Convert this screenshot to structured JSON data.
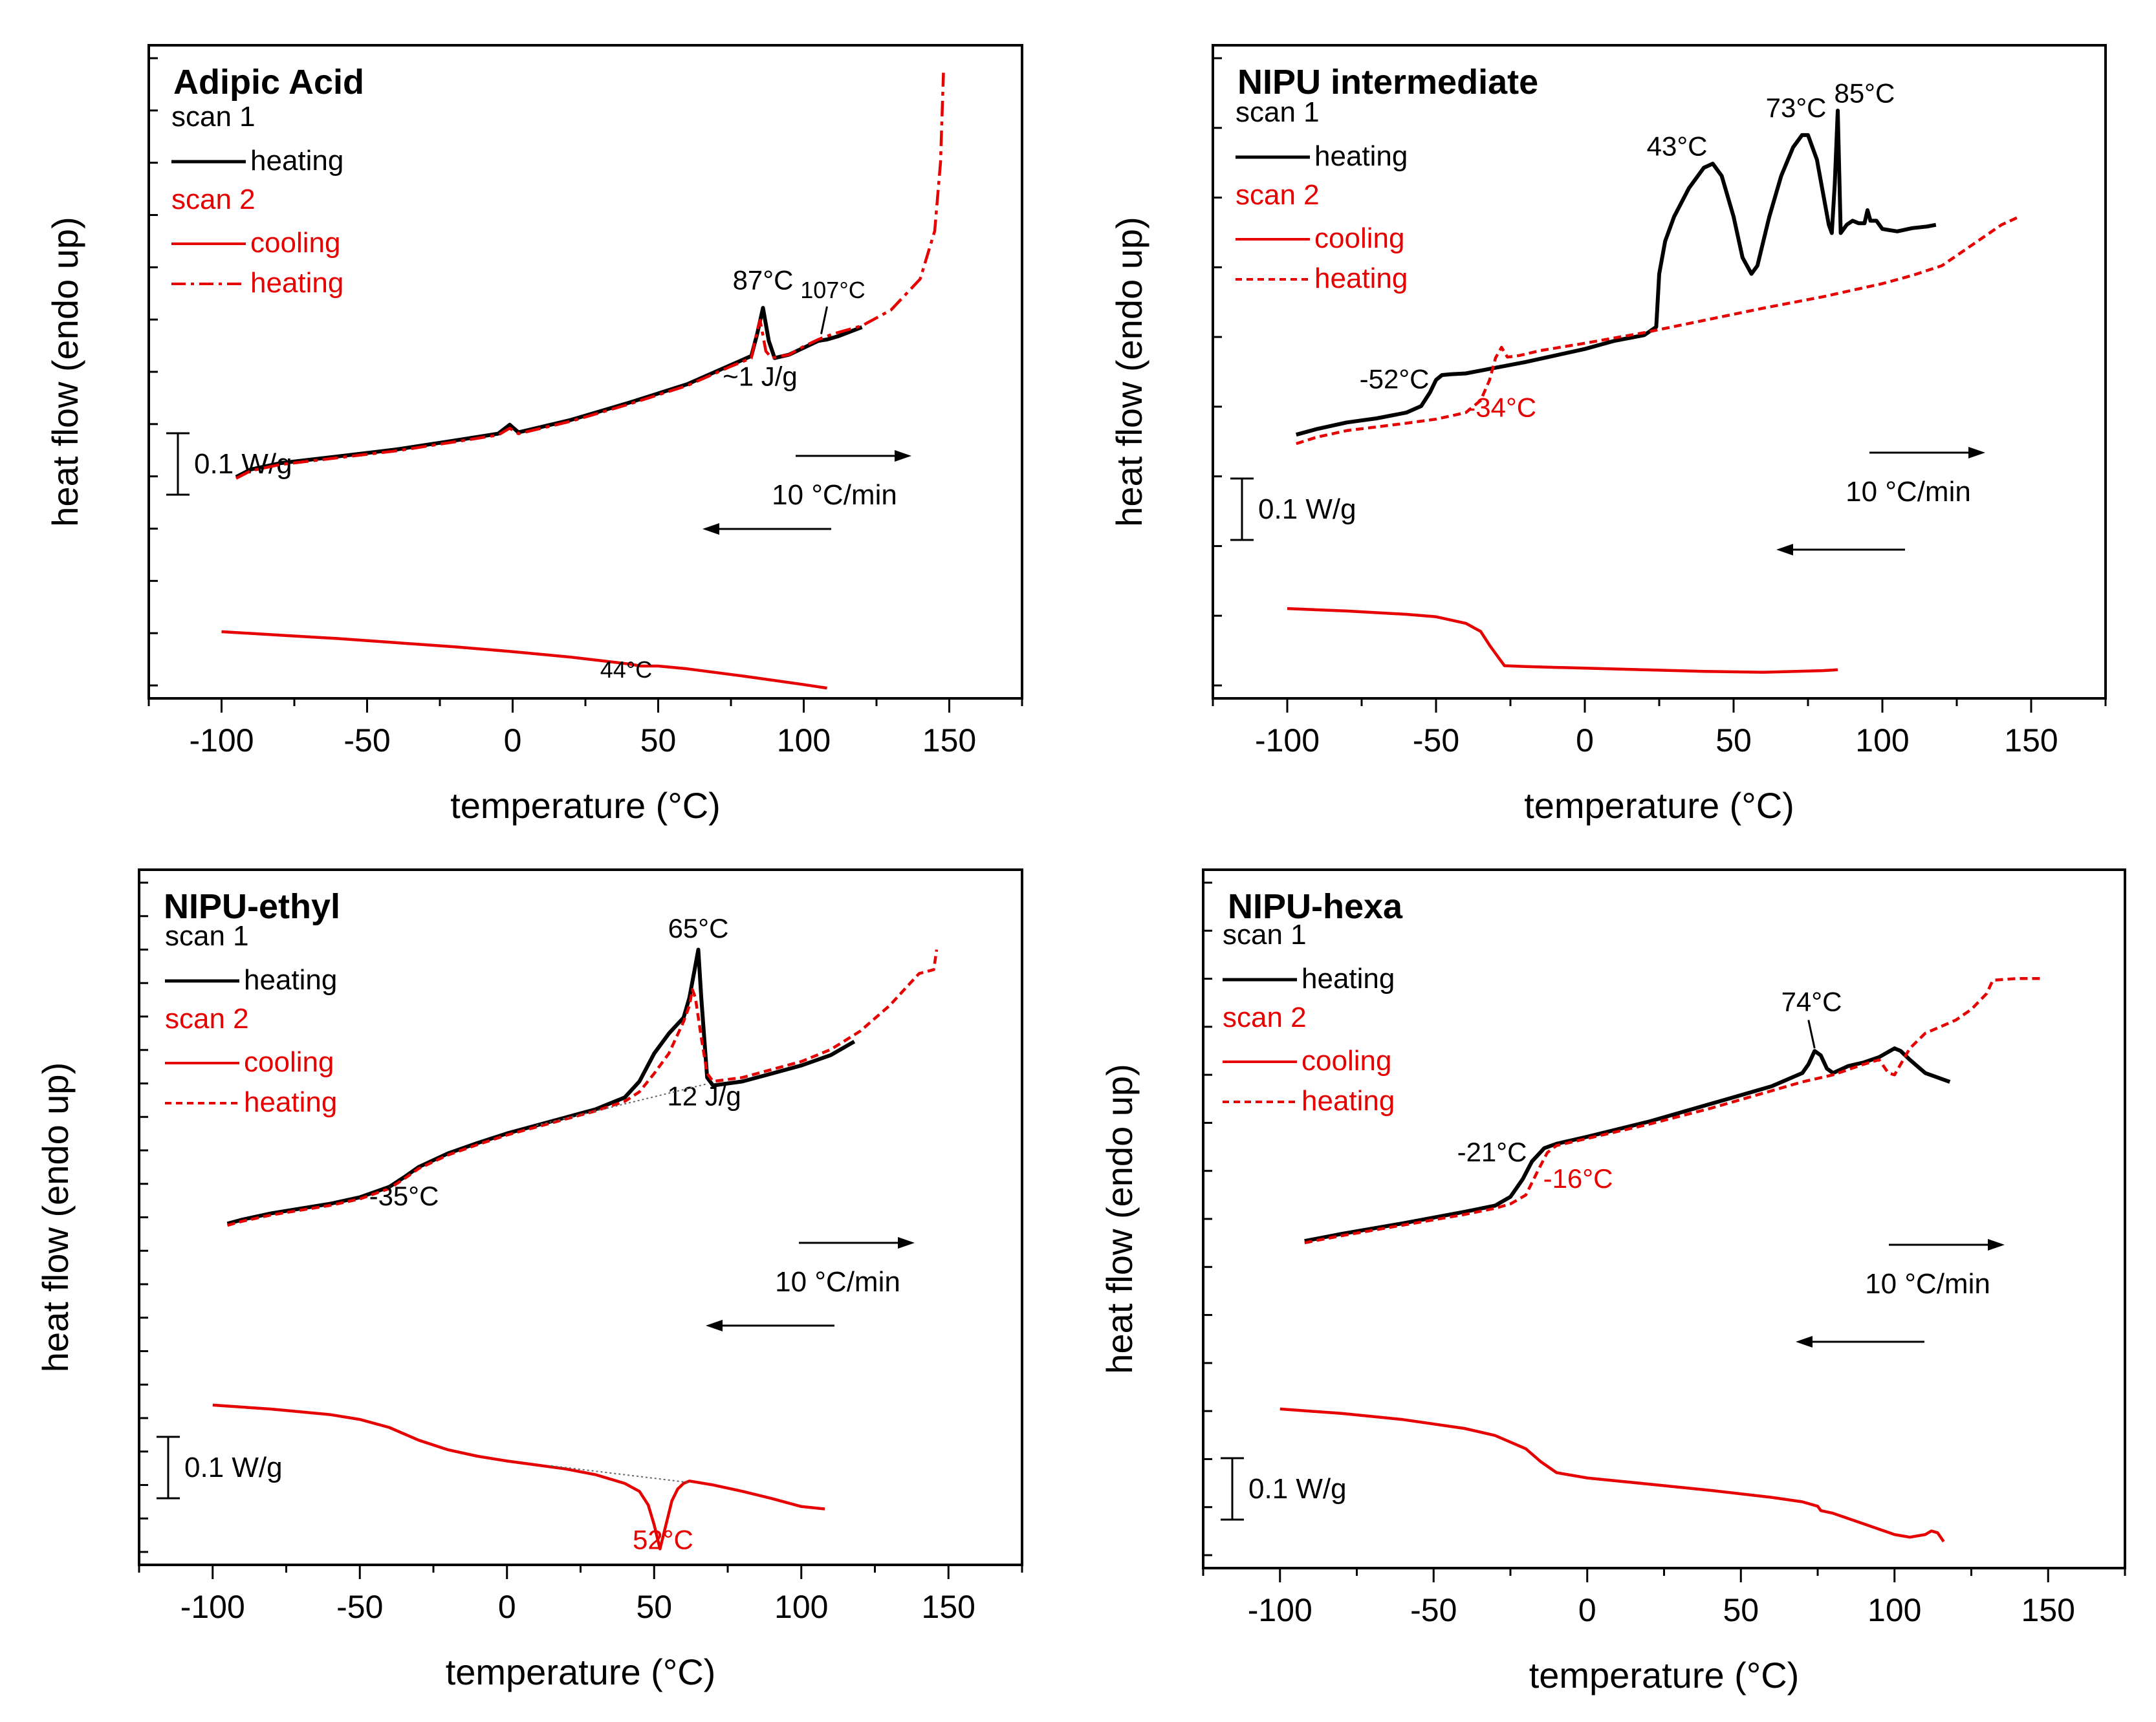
{
  "chart_data": [
    {
      "type": "line",
      "title": "Adipic Acid",
      "xlabel": "temperature (°C)",
      "ylabel": "heat flow (endo up)",
      "xlim": [
        -125,
        175
      ],
      "xticks": [
        "-100",
        "-50",
        "0",
        "50",
        "100",
        "150"
      ],
      "scale_bar": "0.1 W/g",
      "rate_label": "10 °C/min",
      "legend": {
        "scan1": "scan 1",
        "scan1_heating": "heating",
        "scan2": "scan 2",
        "scan2_cooling": "cooling",
        "scan2_heating": "heating",
        "scan2_heating_style": "dashdot"
      },
      "series": [
        {
          "name": "scan 1 heating",
          "color": "#000000",
          "style": "solid",
          "x": [
            -95,
            -90,
            -80,
            -60,
            -40,
            -20,
            -5,
            -1,
            2,
            5,
            20,
            40,
            60,
            75,
            82,
            84,
            86,
            88,
            90,
            95,
            100,
            105,
            108,
            112,
            120
          ],
          "y": [
            -0.008,
            0.003,
            0.012,
            0.022,
            0.032,
            0.045,
            0.055,
            0.068,
            0.057,
            0.06,
            0.075,
            0.1,
            0.127,
            0.155,
            0.168,
            0.2,
            0.238,
            0.19,
            0.165,
            0.17,
            0.18,
            0.19,
            0.192,
            0.197,
            0.21
          ]
        },
        {
          "name": "scan 2 heating",
          "color": "#e60000",
          "style": "dashdot",
          "x": [
            -95,
            -90,
            -80,
            -60,
            -40,
            -20,
            -5,
            -1,
            2,
            5,
            20,
            40,
            60,
            75,
            82,
            84,
            85,
            87,
            89,
            95,
            100,
            105,
            110,
            120,
            130,
            140,
            145,
            147,
            148
          ],
          "y": [
            -0.01,
            0.001,
            0.01,
            0.02,
            0.03,
            0.043,
            0.053,
            0.063,
            0.055,
            0.058,
            0.073,
            0.098,
            0.125,
            0.153,
            0.165,
            0.205,
            0.22,
            0.175,
            0.165,
            0.17,
            0.182,
            0.192,
            0.2,
            0.212,
            0.235,
            0.28,
            0.35,
            0.45,
            0.58
          ]
        },
        {
          "name": "scan 2 cooling",
          "color": "#e60000",
          "style": "solid",
          "x": [
            -100,
            -80,
            -60,
            -40,
            -20,
            0,
            20,
            40,
            44,
            50,
            60,
            80,
            100,
            108
          ],
          "y": [
            -0.233,
            -0.238,
            -0.243,
            -0.249,
            -0.255,
            -0.262,
            -0.27,
            -0.28,
            -0.283,
            -0.283,
            -0.287,
            -0.298,
            -0.31,
            -0.315
          ]
        }
      ],
      "annotations": [
        {
          "text": "87°C",
          "x": 86,
          "y": 0.265
        },
        {
          "text": "107°C",
          "x": 110,
          "y": 0.252
        },
        {
          "text": "~1 J/g",
          "x": 85,
          "y": 0.125
        },
        {
          "text": "44°C",
          "x": 39,
          "y": -0.3
        }
      ]
    },
    {
      "type": "line",
      "title": "NIPU intermediate",
      "xlabel": "temperature (°C)",
      "ylabel": "heat flow (endo up)",
      "xlim": [
        -125,
        175
      ],
      "xticks": [
        "-100",
        "-50",
        "0",
        "50",
        "100",
        "150"
      ],
      "scale_bar": "0.1 W/g",
      "rate_label": "10 °C/min",
      "legend": {
        "scan1": "scan 1",
        "scan1_heating": "heating",
        "scan2": "scan 2",
        "scan2_cooling": "cooling",
        "scan2_heating": "heating",
        "scan2_heating_style": "dashed"
      },
      "series": [
        {
          "name": "scan 1 heating",
          "color": "#000000",
          "style": "solid",
          "x": [
            -97,
            -90,
            -80,
            -70,
            -60,
            -55,
            -52,
            -50,
            -48,
            -45,
            -40,
            -30,
            -20,
            -10,
            0,
            10,
            20,
            24,
            25,
            27,
            30,
            35,
            40,
            43,
            46,
            50,
            53,
            56,
            58,
            62,
            66,
            70,
            73,
            75,
            78,
            80,
            82,
            83,
            84,
            85,
            86,
            88,
            90,
            92,
            94,
            95,
            96,
            98,
            100,
            105,
            110,
            115,
            118
          ],
          "y": [
            0.003,
            0.01,
            0.018,
            0.023,
            0.03,
            0.038,
            0.055,
            0.07,
            0.076,
            0.077,
            0.078,
            0.085,
            0.092,
            0.1,
            0.108,
            0.118,
            0.125,
            0.135,
            0.2,
            0.24,
            0.27,
            0.305,
            0.33,
            0.335,
            0.32,
            0.27,
            0.22,
            0.2,
            0.21,
            0.27,
            0.32,
            0.355,
            0.37,
            0.37,
            0.34,
            0.3,
            0.26,
            0.25,
            0.31,
            0.4,
            0.25,
            0.26,
            0.265,
            0.262,
            0.262,
            0.278,
            0.265,
            0.265,
            0.255,
            0.252,
            0.256,
            0.258,
            0.26
          ]
        },
        {
          "name": "scan 2 heating",
          "color": "#e60000",
          "style": "dashed",
          "x": [
            -97,
            -90,
            -80,
            -60,
            -50,
            -40,
            -35,
            -32,
            -30,
            -28,
            -26,
            -22,
            -15,
            0,
            20,
            40,
            60,
            80,
            100,
            110,
            120,
            130,
            140,
            146
          ],
          "y": [
            -0.008,
            0.0,
            0.008,
            0.017,
            0.022,
            0.03,
            0.045,
            0.07,
            0.097,
            0.11,
            0.098,
            0.1,
            0.106,
            0.115,
            0.128,
            0.143,
            0.158,
            0.172,
            0.188,
            0.198,
            0.21,
            0.235,
            0.26,
            0.27
          ]
        },
        {
          "name": "scan 2 cooling",
          "color": "#e60000",
          "style": "solid",
          "x": [
            -100,
            -80,
            -60,
            -50,
            -40,
            -35,
            -32,
            -29,
            -27,
            -20,
            0,
            20,
            40,
            60,
            80,
            85
          ],
          "y": [
            -0.21,
            -0.213,
            -0.217,
            -0.22,
            -0.228,
            -0.238,
            -0.255,
            -0.27,
            -0.28,
            -0.281,
            -0.283,
            -0.285,
            -0.287,
            -0.288,
            -0.286,
            -0.285
          ]
        }
      ],
      "annotations": [
        {
          "text": "43°C",
          "x": 31,
          "y": 0.345
        },
        {
          "text": "73°C",
          "x": 71,
          "y": 0.392
        },
        {
          "text": "85°C",
          "x": 94,
          "y": 0.41
        },
        {
          "text": "-52°C",
          "x": -64,
          "y": 0.06
        },
        {
          "text": "-34°C",
          "x": -28,
          "y": 0.025
        }
      ]
    },
    {
      "type": "line",
      "title": "NIPU-ethyl",
      "xlabel": "temperature (°C)",
      "ylabel": "heat flow (endo up)",
      "xlim": [
        -125,
        175
      ],
      "xticks": [
        "-100",
        "-50",
        "0",
        "50",
        "100",
        "150"
      ],
      "scale_bar": "0.1 W/g",
      "rate_label": "10 °C/min",
      "legend": {
        "scan1": "scan 1",
        "scan1_heating": "heating",
        "scan2": "scan 2",
        "scan2_cooling": "cooling",
        "scan2_heating": "heating",
        "scan2_heating_style": "dashed"
      },
      "series": [
        {
          "name": "scan 1 heating",
          "color": "#000000",
          "style": "solid",
          "x": [
            -95,
            -90,
            -80,
            -60,
            -50,
            -40,
            -35,
            -30,
            -20,
            -10,
            0,
            10,
            20,
            30,
            40,
            45,
            50,
            55,
            60,
            62,
            64,
            65,
            66,
            68,
            70,
            80,
            90,
            100,
            110,
            118
          ],
          "y": [
            -0.013,
            -0.008,
            0.0,
            0.012,
            0.02,
            0.033,
            0.045,
            0.058,
            0.075,
            0.088,
            0.1,
            0.11,
            0.12,
            0.13,
            0.145,
            0.165,
            0.2,
            0.225,
            0.245,
            0.27,
            0.31,
            0.33,
            0.27,
            0.17,
            0.16,
            0.165,
            0.175,
            0.185,
            0.198,
            0.215
          ]
        },
        {
          "name": "scan 2 heating",
          "color": "#e60000",
          "style": "dashed",
          "x": [
            -95,
            -90,
            -80,
            -60,
            -50,
            -40,
            -35,
            -30,
            -20,
            -10,
            0,
            10,
            20,
            30,
            40,
            45,
            50,
            55,
            60,
            62,
            63,
            64,
            66,
            68,
            70,
            80,
            90,
            100,
            110,
            120,
            130,
            135,
            140,
            145,
            146
          ],
          "y": [
            -0.015,
            -0.01,
            -0.002,
            0.01,
            0.018,
            0.031,
            0.043,
            0.056,
            0.073,
            0.086,
            0.098,
            0.108,
            0.118,
            0.128,
            0.14,
            0.152,
            0.175,
            0.2,
            0.24,
            0.26,
            0.28,
            0.27,
            0.22,
            0.175,
            0.165,
            0.17,
            0.18,
            0.19,
            0.205,
            0.228,
            0.26,
            0.28,
            0.3,
            0.305,
            0.33
          ]
        },
        {
          "name": "scan 2 cooling",
          "color": "#e60000",
          "style": "solid",
          "x": [
            -100,
            -80,
            -60,
            -50,
            -40,
            -30,
            -20,
            -10,
            0,
            10,
            20,
            30,
            40,
            45,
            48,
            50,
            52,
            54,
            56,
            58,
            60,
            62,
            70,
            80,
            90,
            100,
            108
          ],
          "y": [
            -0.24,
            -0.245,
            -0.252,
            -0.258,
            -0.268,
            -0.284,
            -0.296,
            -0.304,
            -0.31,
            -0.315,
            -0.32,
            -0.327,
            -0.338,
            -0.348,
            -0.365,
            -0.39,
            -0.42,
            -0.39,
            -0.36,
            -0.345,
            -0.338,
            -0.335,
            -0.34,
            -0.348,
            -0.357,
            -0.367,
            -0.37
          ]
        }
      ],
      "annotations": [
        {
          "text": "65°C",
          "x": 65,
          "y": 0.345
        },
        {
          "text": "12 J/g",
          "x": 67,
          "y": 0.135
        },
        {
          "text": "-35°C",
          "x": -35,
          "y": 0.01
        },
        {
          "text": "52°C",
          "x": 53,
          "y": -0.42
        }
      ]
    },
    {
      "type": "line",
      "title": "NIPU-hexa",
      "xlabel": "temperature (°C)",
      "ylabel": "heat flow (endo up)",
      "xlim": [
        -125,
        175
      ],
      "xticks": [
        "-100",
        "-50",
        "0",
        "50",
        "100",
        "150"
      ],
      "scale_bar": "0.1 W/g",
      "rate_label": "10 °C/min",
      "legend": {
        "scan1": "scan 1",
        "scan1_heating": "heating",
        "scan2": "scan 2",
        "scan2_cooling": "cooling",
        "scan2_heating": "heating",
        "scan2_heating_style": "dashed"
      },
      "series": [
        {
          "name": "scan 1 heating",
          "color": "#000000",
          "style": "solid",
          "x": [
            -92,
            -80,
            -60,
            -40,
            -30,
            -25,
            -21,
            -18,
            -14,
            -10,
            0,
            20,
            40,
            60,
            70,
            72,
            74,
            76,
            78,
            80,
            85,
            90,
            95,
            100,
            102,
            105,
            110,
            118
          ],
          "y": [
            0.01,
            0.018,
            0.03,
            0.043,
            0.05,
            0.06,
            0.08,
            0.1,
            0.115,
            0.12,
            0.128,
            0.145,
            0.165,
            0.185,
            0.2,
            0.21,
            0.225,
            0.22,
            0.205,
            0.2,
            0.208,
            0.212,
            0.218,
            0.228,
            0.225,
            0.215,
            0.2,
            0.19
          ]
        },
        {
          "name": "scan 2 heating",
          "color": "#e60000",
          "style": "dashed",
          "x": [
            -92,
            -80,
            -60,
            -40,
            -30,
            -25,
            -20,
            -16,
            -13,
            -10,
            0,
            20,
            40,
            60,
            70,
            80,
            90,
            95,
            98,
            100,
            105,
            110,
            120,
            125,
            130,
            132,
            140,
            148
          ],
          "y": [
            0.008,
            0.016,
            0.028,
            0.04,
            0.047,
            0.052,
            0.062,
            0.09,
            0.11,
            0.118,
            0.126,
            0.142,
            0.16,
            0.18,
            0.19,
            0.198,
            0.21,
            0.215,
            0.2,
            0.198,
            0.228,
            0.245,
            0.26,
            0.272,
            0.29,
            0.305,
            0.307,
            0.307
          ]
        },
        {
          "name": "scan 2 cooling",
          "color": "#e60000",
          "style": "solid",
          "x": [
            -100,
            -80,
            -60,
            -40,
            -30,
            -20,
            -15,
            -10,
            0,
            20,
            40,
            60,
            70,
            75,
            76,
            80,
            90,
            100,
            105,
            110,
            112,
            114,
            116
          ],
          "y": [
            -0.18,
            -0.185,
            -0.192,
            -0.202,
            -0.21,
            -0.225,
            -0.24,
            -0.252,
            -0.258,
            -0.265,
            -0.272,
            -0.28,
            -0.285,
            -0.29,
            -0.295,
            -0.298,
            -0.31,
            -0.322,
            -0.325,
            -0.322,
            -0.318,
            -0.32,
            -0.33
          ]
        }
      ],
      "annotations": [
        {
          "text": "74°C",
          "x": 73,
          "y": 0.27
        },
        {
          "text": "-21°C",
          "x": -31,
          "y": 0.1
        },
        {
          "text": "-16°C",
          "x": -3,
          "y": 0.07
        }
      ]
    }
  ]
}
